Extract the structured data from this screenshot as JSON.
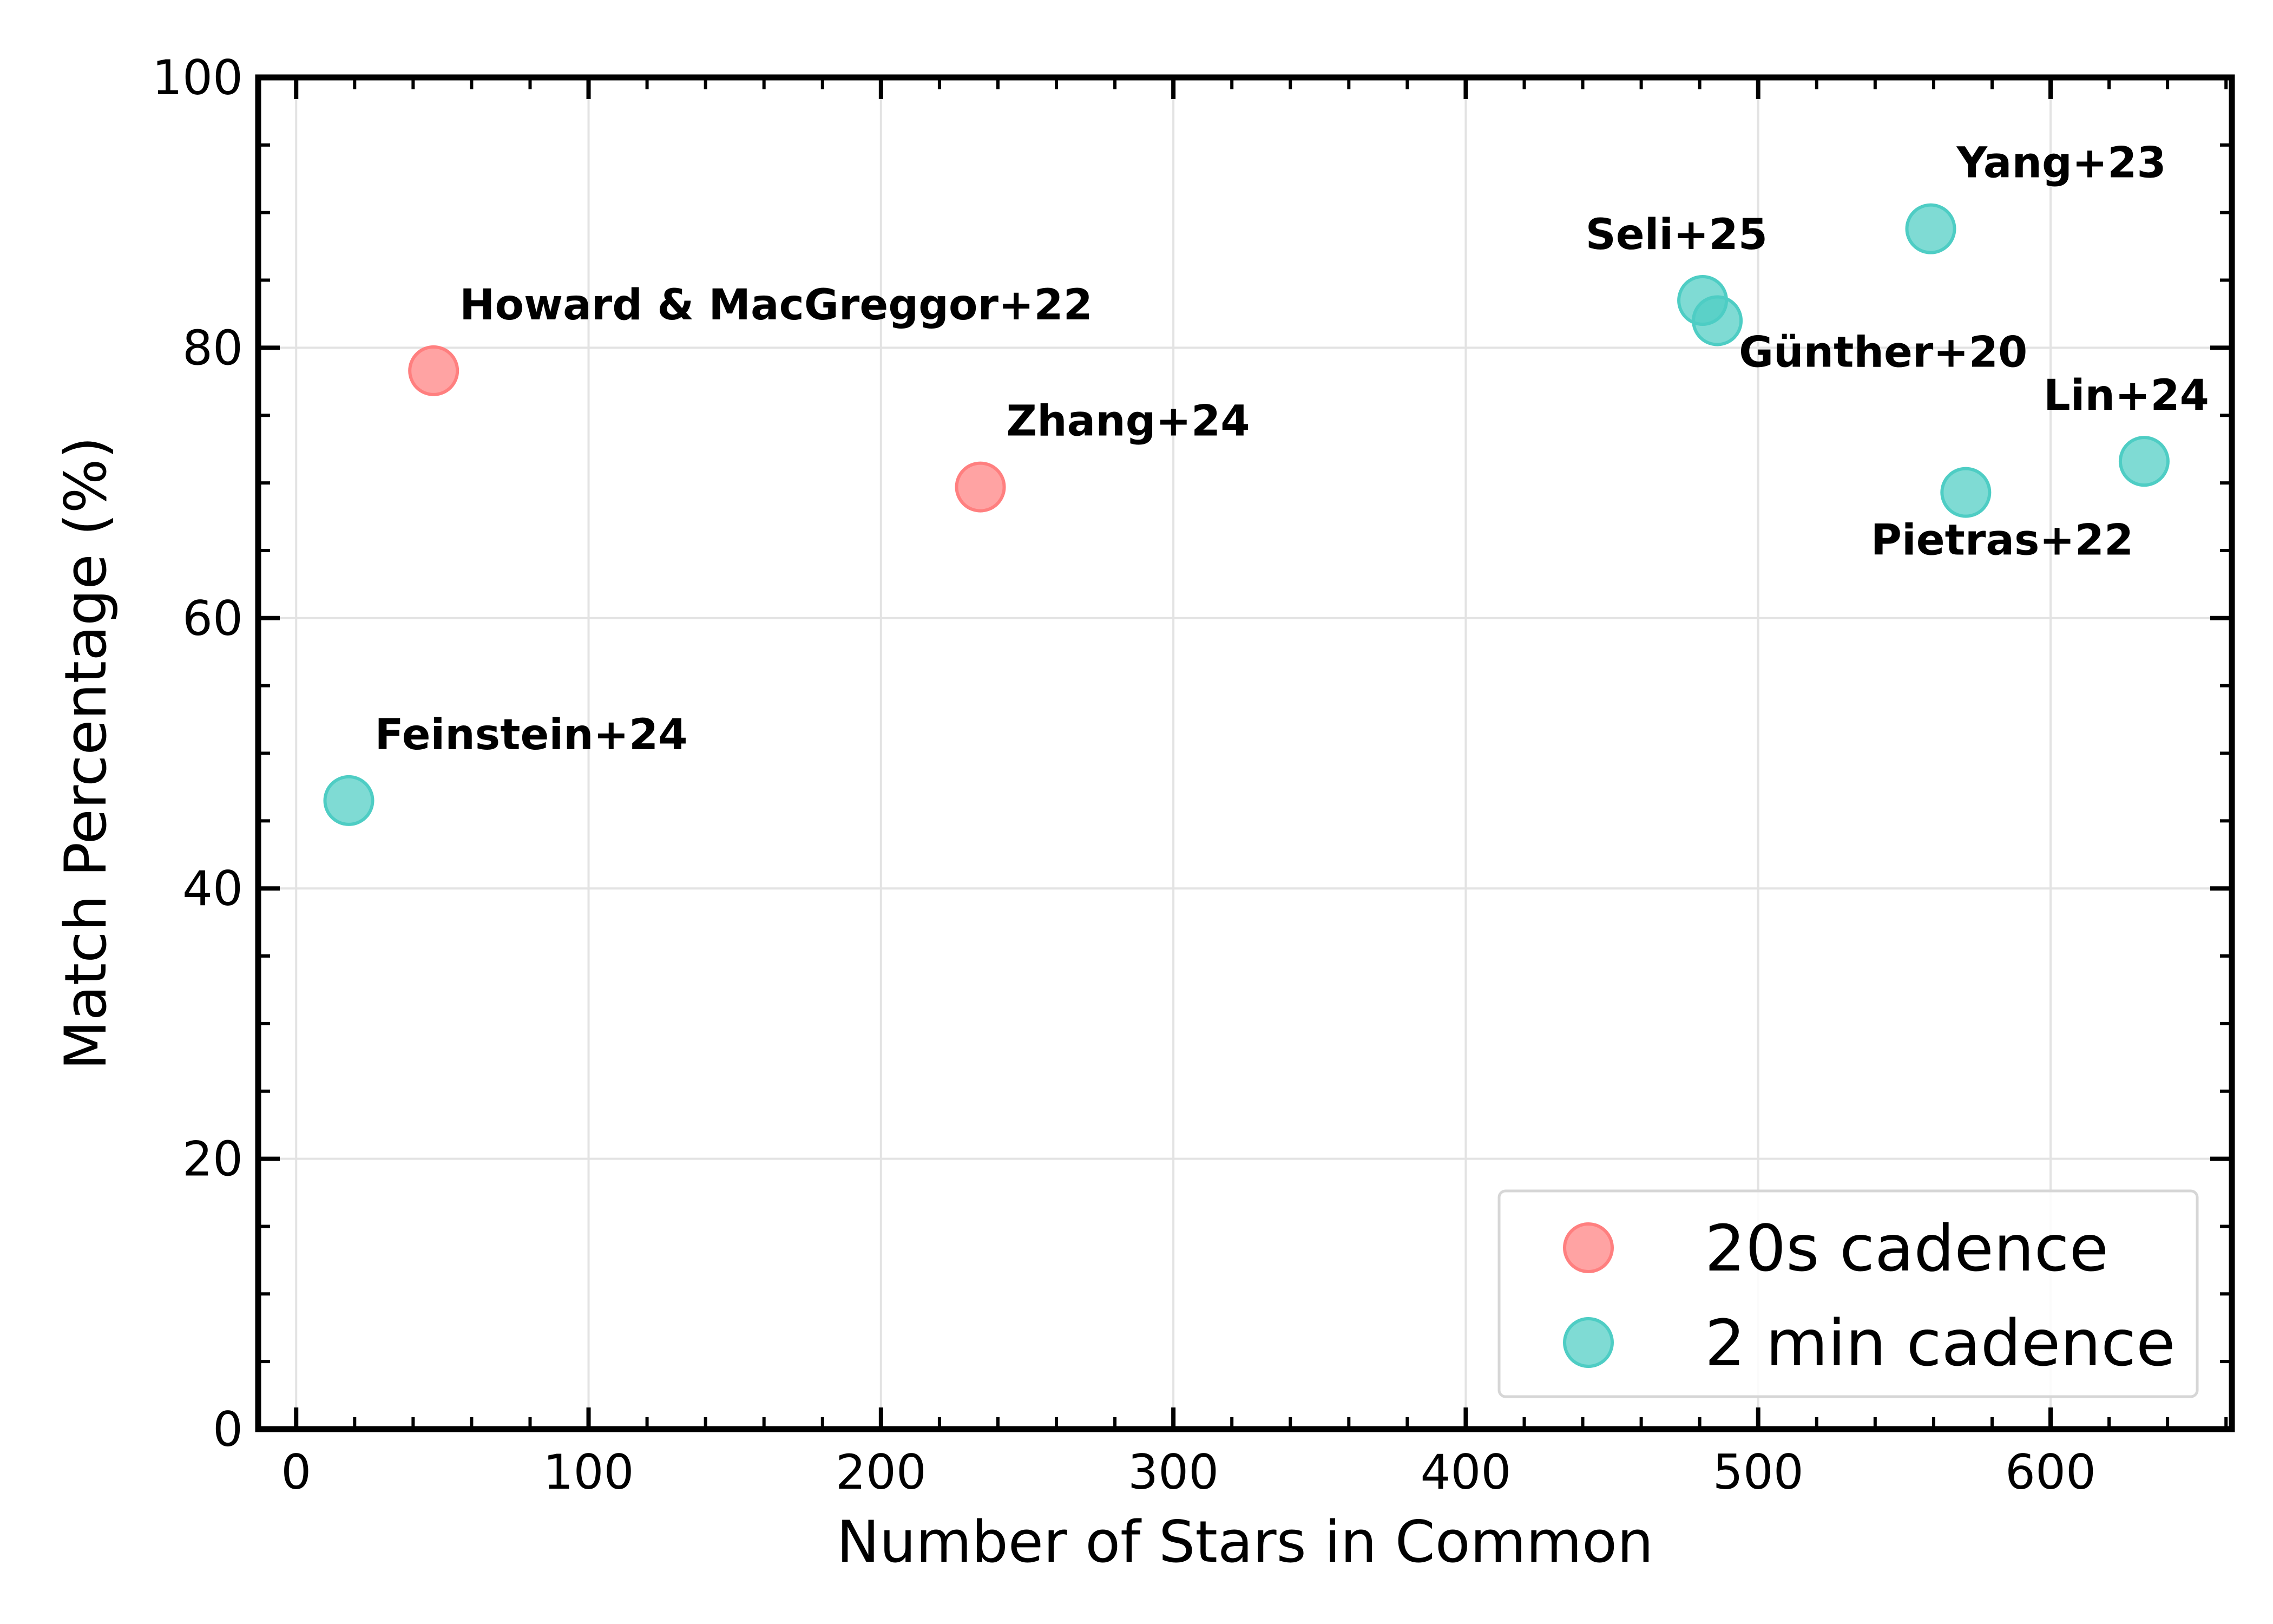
{
  "chart_data": {
    "type": "scatter",
    "xlabel": "Number of Stars in Common",
    "ylabel": "Match Percentage (%)",
    "xlim": [
      -13,
      662
    ],
    "ylim": [
      0,
      100
    ],
    "xticks": [
      0,
      100,
      200,
      300,
      400,
      500,
      600
    ],
    "yticks": [
      0,
      20,
      40,
      60,
      80,
      100
    ],
    "grid": true,
    "legend_position": "lower-right",
    "series": [
      {
        "name": "20s cadence",
        "color": "#ff7f7f",
        "points": [
          {
            "label": "Howard & MacGreggor+22",
            "x": 47,
            "y": 78.3,
            "label_pos": "above-right"
          },
          {
            "label": "Zhang+24",
            "x": 234,
            "y": 69.7,
            "label_pos": "above-right"
          }
        ]
      },
      {
        "name": "2 min cadence",
        "color": "#4ecdc4",
        "points": [
          {
            "label": "Feinstein+24",
            "x": 18,
            "y": 46.5,
            "label_pos": "above-right"
          },
          {
            "label": "Seli+25",
            "x": 481,
            "y": 83.5,
            "label_pos": "above-left"
          },
          {
            "label": "Günther+20",
            "x": 486,
            "y": 82.0,
            "label_pos": "below-right"
          },
          {
            "label": "Yang+23",
            "x": 559,
            "y": 88.8,
            "label_pos": "above-right"
          },
          {
            "label": "Pietras+22",
            "x": 571,
            "y": 69.3,
            "label_pos": "below-left"
          },
          {
            "label": "Lin+24",
            "x": 632,
            "y": 71.6,
            "label_pos": "above-left"
          }
        ]
      }
    ]
  }
}
